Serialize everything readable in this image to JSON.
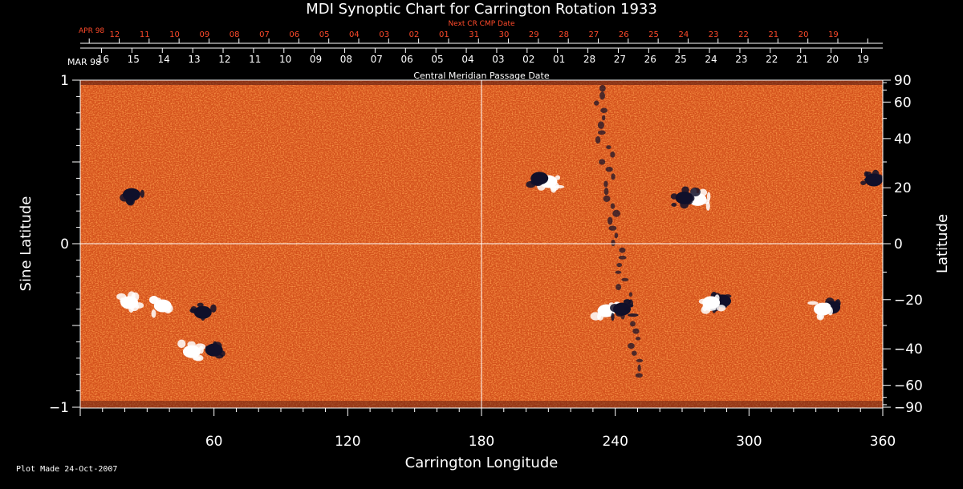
{
  "chart_data": {
    "type": "heatmap",
    "title": "MDI Synoptic Chart for Carrington Rotation 1933",
    "xlabel": "Carrington Longitude",
    "ylabel_left": "Sine Latitude",
    "ylabel_right": "Latitude",
    "xlim": [
      0,
      360
    ],
    "ylim": [
      -1,
      1
    ],
    "x_ticks": [
      60,
      120,
      180,
      240,
      300,
      360
    ],
    "y_ticks_left": [
      1,
      0,
      -1
    ],
    "y_ticks_right": [
      90,
      60,
      40,
      20,
      0,
      -20,
      -40,
      -60,
      -90
    ],
    "top_axis_1": {
      "title": "Central Meridian Passage Date",
      "start_label": "MAR 98",
      "labels": [
        "16",
        "15",
        "14",
        "13",
        "12",
        "11",
        "10",
        "09",
        "08",
        "07",
        "06",
        "05",
        "04",
        "03",
        "02",
        "01",
        "28",
        "27",
        "26",
        "25",
        "24",
        "23",
        "22",
        "21",
        "20",
        "19"
      ]
    },
    "top_axis_2": {
      "title": "Next CR CMP Date",
      "start_label": "APR 98",
      "labels": [
        "12",
        "11",
        "10",
        "09",
        "08",
        "07",
        "06",
        "05",
        "04",
        "03",
        "02",
        "01",
        "31",
        "30",
        "29",
        "28",
        "27",
        "26",
        "25",
        "24",
        "23",
        "22",
        "21",
        "20",
        "19"
      ]
    },
    "colors": {
      "background": "#d8551a",
      "positive": "#ffffff",
      "negative": "#10102a",
      "accent_red": "#ff4a2a"
    },
    "active_regions": [
      {
        "lon": 23,
        "lat": 0.3,
        "polarity": "negative"
      },
      {
        "lon": 22,
        "lat": -0.36,
        "polarity": "positive"
      },
      {
        "lon": 37,
        "lat": -0.38,
        "polarity": "positive"
      },
      {
        "lon": 55,
        "lat": -0.42,
        "polarity": "negative"
      },
      {
        "lon": 60,
        "lat": -0.65,
        "polarity": "negative"
      },
      {
        "lon": 50,
        "lat": -0.66,
        "polarity": "positive"
      },
      {
        "lon": 210,
        "lat": 0.38,
        "polarity": "positive"
      },
      {
        "lon": 206,
        "lat": 0.4,
        "polarity": "negative"
      },
      {
        "lon": 277,
        "lat": 0.27,
        "polarity": "positive"
      },
      {
        "lon": 271,
        "lat": 0.28,
        "polarity": "negative"
      },
      {
        "lon": 236,
        "lat": -0.41,
        "polarity": "positive"
      },
      {
        "lon": 243,
        "lat": -0.4,
        "polarity": "negative"
      },
      {
        "lon": 288,
        "lat": -0.35,
        "polarity": "negative"
      },
      {
        "lon": 283,
        "lat": -0.36,
        "polarity": "positive"
      },
      {
        "lon": 337,
        "lat": -0.39,
        "polarity": "negative"
      },
      {
        "lon": 333,
        "lat": -0.4,
        "polarity": "positive"
      },
      {
        "lon": 356,
        "lat": 0.39,
        "polarity": "negative"
      }
    ]
  },
  "footer": {
    "text": "Plot Made 24-Oct-2007"
  }
}
